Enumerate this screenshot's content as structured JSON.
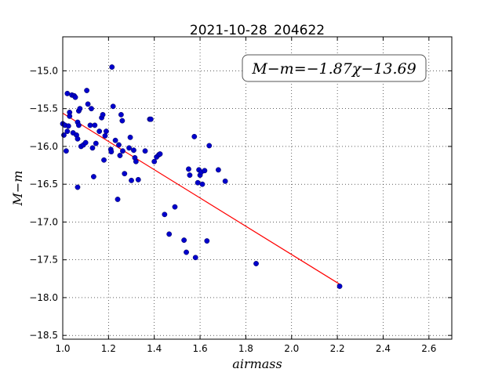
{
  "chart_data": {
    "type": "scatter",
    "title": "2021-10-28_204622",
    "xlabel": "airmass",
    "ylabel": "M−m",
    "xlim": [
      1.0,
      2.7
    ],
    "ylim": [
      -18.55,
      -14.55
    ],
    "xticks": [
      1.0,
      1.2,
      1.4,
      1.6,
      1.8,
      2.0,
      2.2,
      2.4,
      2.6
    ],
    "xtick_labels": [
      "1.0",
      "1.2",
      "1.4",
      "1.6",
      "1.8",
      "2.0",
      "2.2",
      "2.4",
      "2.6"
    ],
    "yticks": [
      -15.0,
      -15.5,
      -16.0,
      -16.5,
      -17.0,
      -17.5,
      -18.0,
      -18.5
    ],
    "ytick_labels": [
      "−15.0",
      "−15.5",
      "−16.0",
      "−16.5",
      "−17.0",
      "−17.5",
      "−18.0",
      "−18.5"
    ],
    "grid": true,
    "annotation": "M−m=−1.87χ−13.69",
    "fit_line": {
      "slope": -1.87,
      "intercept": -13.69,
      "x_range": [
        1.0,
        2.21
      ],
      "color": "#ff0000"
    },
    "point_color": "#0000cc",
    "series": [
      {
        "points": [
          [
            1.0,
            -15.7
          ],
          [
            1.005,
            -15.85
          ],
          [
            1.01,
            -15.72
          ],
          [
            1.015,
            -16.06
          ],
          [
            1.02,
            -15.8
          ],
          [
            1.025,
            -15.73
          ],
          [
            1.02,
            -15.3
          ],
          [
            1.03,
            -15.55
          ],
          [
            1.03,
            -15.6
          ],
          [
            1.04,
            -15.32
          ],
          [
            1.045,
            -15.82
          ],
          [
            1.05,
            -15.33
          ],
          [
            1.055,
            -15.35
          ],
          [
            1.06,
            -15.85
          ],
          [
            1.065,
            -15.9
          ],
          [
            1.065,
            -15.68
          ],
          [
            1.07,
            -15.72
          ],
          [
            1.065,
            -16.54
          ],
          [
            1.07,
            -15.53
          ],
          [
            1.075,
            -15.5
          ],
          [
            1.08,
            -16.0
          ],
          [
            1.09,
            -15.98
          ],
          [
            1.1,
            -15.95
          ],
          [
            1.105,
            -15.26
          ],
          [
            1.11,
            -15.44
          ],
          [
            1.12,
            -15.72
          ],
          [
            1.125,
            -15.5
          ],
          [
            1.13,
            -16.02
          ],
          [
            1.135,
            -16.4
          ],
          [
            1.14,
            -15.72
          ],
          [
            1.145,
            -15.96
          ],
          [
            1.16,
            -15.8
          ],
          [
            1.17,
            -15.62
          ],
          [
            1.175,
            -15.58
          ],
          [
            1.18,
            -16.18
          ],
          [
            1.185,
            -15.86
          ],
          [
            1.19,
            -15.8
          ],
          [
            1.21,
            -16.04
          ],
          [
            1.212,
            -16.07
          ],
          [
            1.215,
            -14.95
          ],
          [
            1.22,
            -15.47
          ],
          [
            1.23,
            -15.92
          ],
          [
            1.24,
            -16.7
          ],
          [
            1.245,
            -15.98
          ],
          [
            1.25,
            -16.12
          ],
          [
            1.255,
            -15.58
          ],
          [
            1.26,
            -15.66
          ],
          [
            1.262,
            -16.06
          ],
          [
            1.27,
            -16.36
          ],
          [
            1.29,
            -16.02
          ],
          [
            1.295,
            -15.88
          ],
          [
            1.3,
            -16.45
          ],
          [
            1.31,
            -16.05
          ],
          [
            1.315,
            -16.15
          ],
          [
            1.32,
            -16.2
          ],
          [
            1.33,
            -16.44
          ],
          [
            1.36,
            -16.06
          ],
          [
            1.38,
            -15.64
          ],
          [
            1.385,
            -15.64
          ],
          [
            1.4,
            -16.2
          ],
          [
            1.41,
            -16.14
          ],
          [
            1.42,
            -16.11
          ],
          [
            1.425,
            -16.1
          ],
          [
            1.445,
            -16.9
          ],
          [
            1.465,
            -17.16
          ],
          [
            1.49,
            -16.8
          ],
          [
            1.53,
            -17.24
          ],
          [
            1.54,
            -17.4
          ],
          [
            1.55,
            -16.3
          ],
          [
            1.555,
            -16.38
          ],
          [
            1.575,
            -15.87
          ],
          [
            1.58,
            -17.47
          ],
          [
            1.59,
            -16.48
          ],
          [
            1.595,
            -16.31
          ],
          [
            1.6,
            -16.38
          ],
          [
            1.605,
            -16.34
          ],
          [
            1.61,
            -16.5
          ],
          [
            1.62,
            -16.32
          ],
          [
            1.63,
            -17.25
          ],
          [
            1.64,
            -15.99
          ],
          [
            1.68,
            -16.31
          ],
          [
            1.71,
            -16.46
          ],
          [
            1.845,
            -17.55
          ],
          [
            2.21,
            -17.85
          ]
        ]
      }
    ]
  }
}
